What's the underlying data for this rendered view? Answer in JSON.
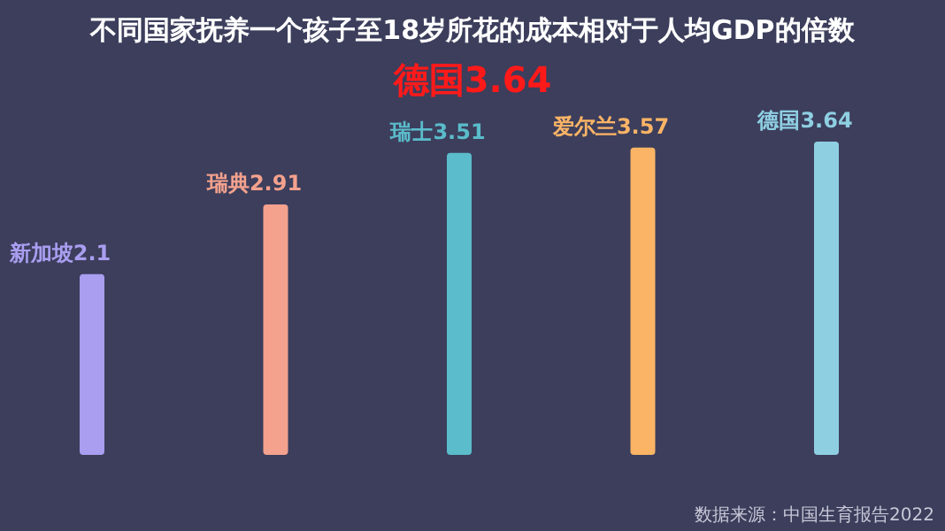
{
  "chart_data": {
    "type": "bar",
    "title": "不同国家抚养一个孩子至18岁所花的成本相对于人均GDP的倍数",
    "subtitle": "德国3.64",
    "categories": [
      "新加坡",
      "瑞典",
      "瑞士",
      "爱尔兰",
      "德国"
    ],
    "values": [
      2.1,
      2.91,
      3.51,
      3.57,
      3.64
    ],
    "colors": [
      "#a99ef0",
      "#f4a18d",
      "#5bbccb",
      "#fbb466",
      "#8fcfe2"
    ],
    "data_labels": true,
    "annotations": [
      "数据来源：中国生育报告2022"
    ]
  }
}
